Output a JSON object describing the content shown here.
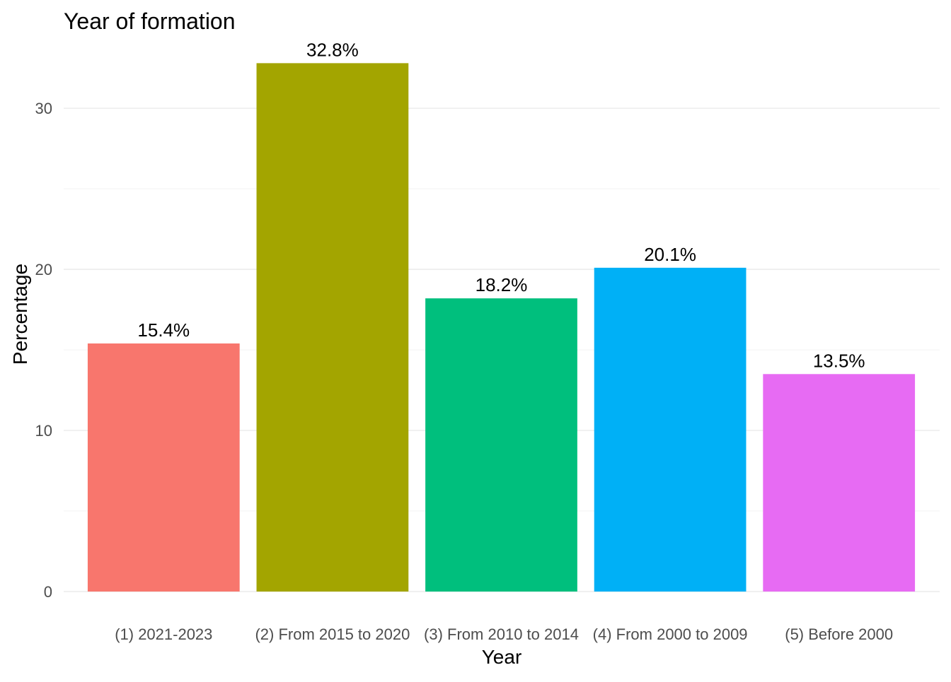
{
  "chart_data": {
    "type": "bar",
    "title": "Year of formation",
    "xlabel": "Year",
    "ylabel": "Percentage",
    "categories": [
      "(1) 2021-2023",
      "(2) From 2015 to 2020",
      "(3) From 2010 to 2014",
      "(4) From 2000 to 2009",
      "(5) Before 2000"
    ],
    "values": [
      15.4,
      32.8,
      18.2,
      20.1,
      13.5
    ],
    "data_labels": [
      "15.4%",
      "32.8%",
      "18.2%",
      "20.1%",
      "13.5%"
    ],
    "colors": [
      "#F8766D",
      "#A3A500",
      "#00BF7D",
      "#00B0F6",
      "#E76BF3"
    ],
    "yticks": [
      0,
      10,
      20,
      30
    ],
    "ylim": [
      0,
      34.44
    ],
    "grid": true,
    "legend": "none"
  }
}
